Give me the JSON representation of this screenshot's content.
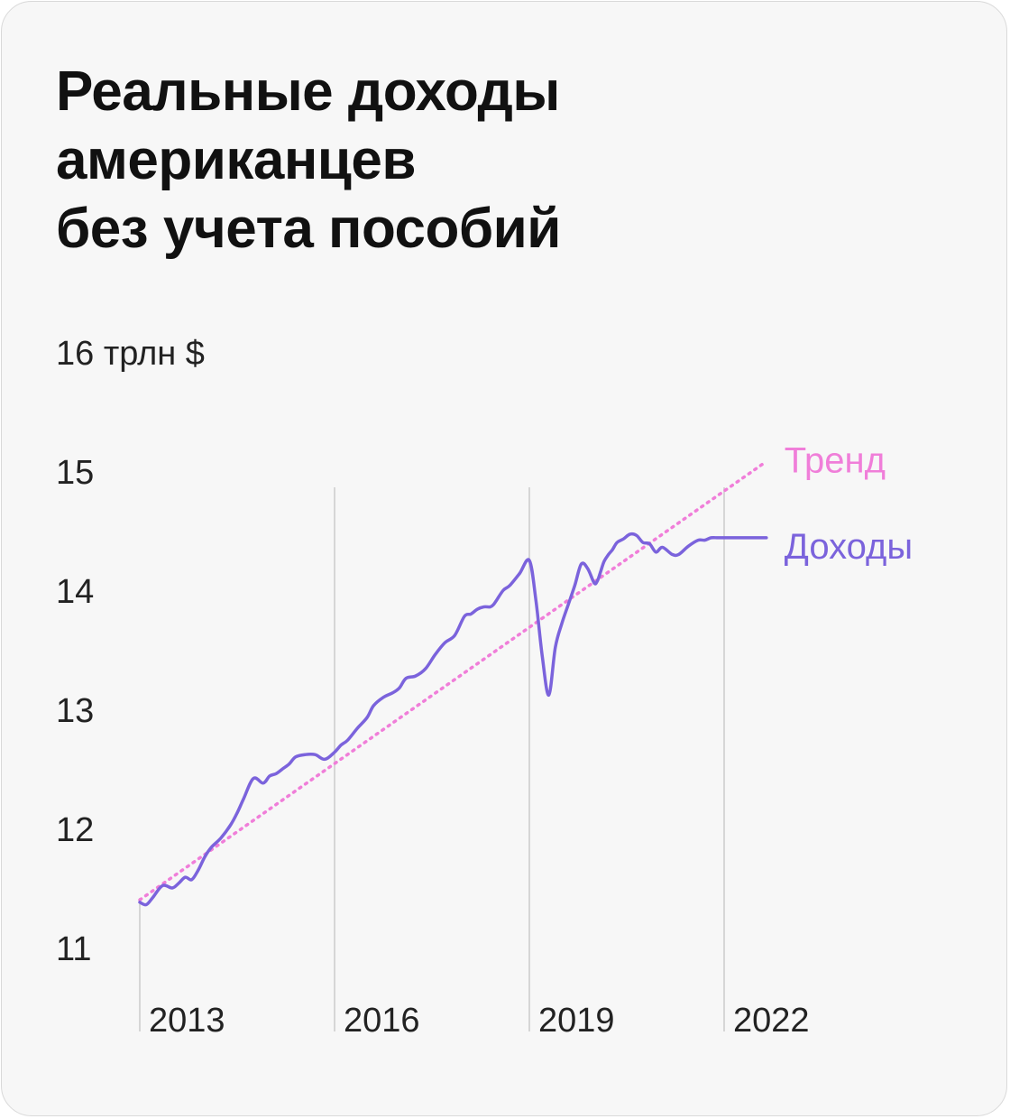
{
  "title_lines": [
    "Реальные доходы",
    "американцев",
    "без учета пособий"
  ],
  "colors": {
    "background": "#f7f7f7",
    "income": "#7b63dc",
    "trend": "#f07ed9",
    "gridline": "#cccccc",
    "text": "#222222"
  },
  "chart_data": {
    "type": "line",
    "title": "Реальные доходы американцев без учета пособий",
    "ylabel": "16 трлн $",
    "ylim": [
      11,
      16
    ],
    "yticks": [
      "16 трлн $",
      "15",
      "14",
      "13",
      "12",
      "11"
    ],
    "ytick_values": [
      16,
      15,
      14,
      13,
      12,
      11
    ],
    "xlim": [
      2013.0,
      2023.2
    ],
    "xticks": [
      "2013",
      "2016",
      "2019",
      "2022"
    ],
    "xtick_values": [
      2013,
      2016,
      2019,
      2022
    ],
    "gridlines": "vertical at year ticks",
    "legend": "direct labels at line ends (right)",
    "series": [
      {
        "name": "Доходы",
        "x": [
          2013.0,
          2013.1,
          2013.2,
          2013.35,
          2013.5,
          2013.6,
          2013.7,
          2013.8,
          2013.9,
          2014.0,
          2014.1,
          2014.25,
          2014.4,
          2014.5,
          2014.6,
          2014.75,
          2014.9,
          2015.0,
          2015.1,
          2015.2,
          2015.3,
          2015.4,
          2015.55,
          2015.7,
          2015.85,
          2016.0,
          2016.1,
          2016.2,
          2016.35,
          2016.5,
          2016.6,
          2016.75,
          2016.9,
          2017.0,
          2017.1,
          2017.25,
          2017.4,
          2017.55,
          2017.7,
          2017.85,
          2018.0,
          2018.1,
          2018.2,
          2018.3,
          2018.4,
          2018.45,
          2018.5,
          2018.6,
          2018.7,
          2018.85,
          2019.0,
          2019.1,
          2019.2,
          2019.3,
          2019.4,
          2019.5,
          2019.6,
          2019.7,
          2019.8,
          2019.9,
          2020.0,
          2020.05,
          2020.1,
          2020.15,
          2020.22,
          2020.28,
          2020.35,
          2020.45,
          2020.55,
          2020.65,
          2020.75,
          2020.85,
          2020.95,
          2021.05,
          2021.2,
          2021.3,
          2021.45,
          2021.6,
          2021.7,
          2021.8,
          2021.9,
          2022.0,
          2022.1,
          2022.2,
          2022.3,
          2022.35,
          2022.45,
          2022.55,
          2022.65
        ],
        "values": [
          11.38,
          11.36,
          11.42,
          11.52,
          11.5,
          11.54,
          11.59,
          11.57,
          11.65,
          11.76,
          11.84,
          11.92,
          12.03,
          12.13,
          12.25,
          12.42,
          12.38,
          12.44,
          12.46,
          12.5,
          12.54,
          12.6,
          12.62,
          12.62,
          12.58,
          12.64,
          12.7,
          12.74,
          12.84,
          12.93,
          13.03,
          13.1,
          13.14,
          13.18,
          13.26,
          13.28,
          13.34,
          13.46,
          13.56,
          13.62,
          13.78,
          13.8,
          13.84,
          13.86,
          13.86,
          13.88,
          13.92,
          14.0,
          14.04,
          14.14,
          14.25,
          13.92,
          13.44,
          13.12,
          13.52,
          13.72,
          13.88,
          14.04,
          14.22,
          14.18,
          14.06,
          14.08,
          14.16,
          14.24,
          14.3,
          14.34,
          14.4,
          14.43,
          14.47,
          14.46,
          14.4,
          14.39,
          14.32,
          14.36,
          14.3,
          14.3,
          14.37,
          14.42,
          14.42,
          14.44,
          14.44,
          14.44,
          14.44,
          14.44,
          14.44,
          14.44,
          14.44,
          14.44,
          14.44
        ]
      },
      {
        "name": "Тренд",
        "x": [
          2013.0,
          2022.65
        ],
        "values": [
          11.4,
          15.08
        ]
      }
    ]
  }
}
